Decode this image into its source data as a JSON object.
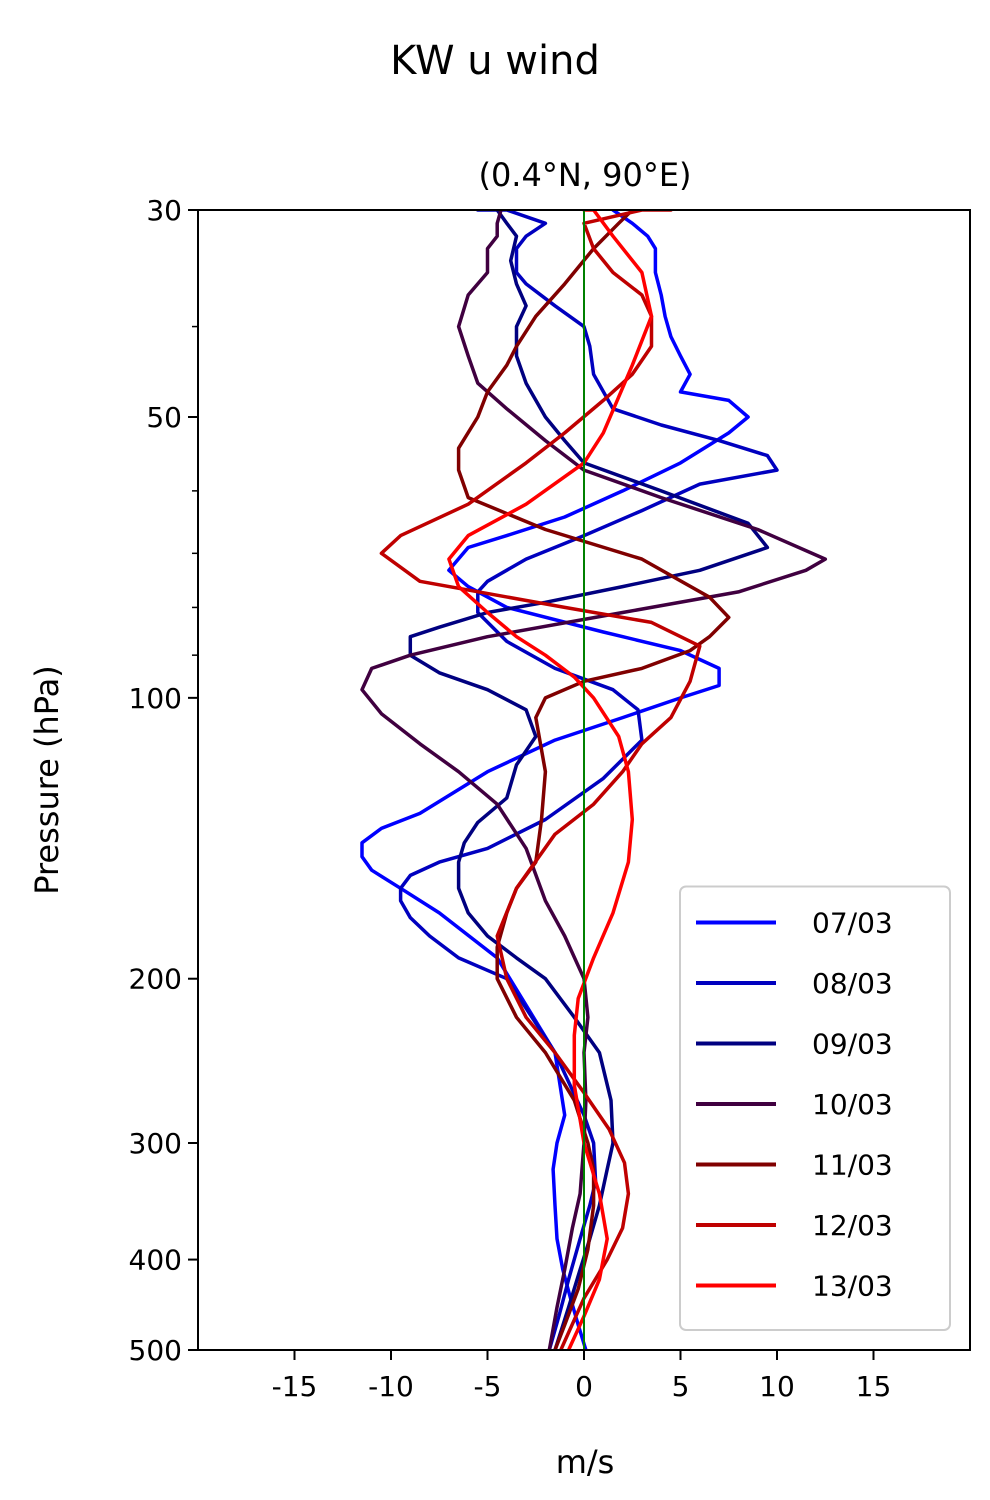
{
  "chart_data": {
    "type": "line",
    "title": "KW u wind",
    "subtitle": "(0.4°N, 90°E)",
    "xlabel": "m/s",
    "ylabel": "Pressure (hPa)",
    "xlim": [
      -20,
      20
    ],
    "ylim": [
      500,
      30
    ],
    "yscale": "log",
    "x_ticks": [
      -15,
      -10,
      -5,
      0,
      5,
      10,
      15
    ],
    "x_tick_labels": [
      "-15",
      "-10",
      "-5",
      "0",
      "5",
      "10",
      "15"
    ],
    "y_ticks": [
      30,
      50,
      100,
      200,
      300,
      400,
      500
    ],
    "y_tick_labels": [
      "30",
      "50",
      "100",
      "200",
      "300",
      "400",
      "500"
    ],
    "y_minor_ticks": [
      40,
      60,
      70,
      80,
      90
    ],
    "reference_line": {
      "x": 0,
      "color": "#008000"
    },
    "legend_position": "lower right",
    "series": [
      {
        "name": "07/03",
        "color": "#0000ff",
        "x": [
          0.1,
          -0.3,
          -0.7,
          -1.1,
          -1.4,
          -1.5,
          -1.6,
          -1.4,
          -1.0,
          -1.5,
          -4.5,
          -7.5,
          -9.5,
          -11.0,
          -11.5,
          -11.5,
          -10.5,
          -8.5,
          -5.0,
          -1.5,
          2.0,
          5.0,
          7.0,
          7.0,
          5.0,
          1.0,
          -4.0,
          -6.0,
          -7.0,
          -6.0,
          -4.0,
          -1.0,
          2.0,
          5.0,
          7.5,
          8.5,
          7.5,
          5.0,
          5.5,
          5.0,
          4.5,
          4.2,
          4.0,
          3.7,
          3.7,
          3.3,
          2.5,
          1.5
        ],
        "y": [
          500,
          470,
          440,
          410,
          380,
          350,
          320,
          300,
          280,
          240,
          190,
          170,
          160,
          153,
          148,
          143,
          138,
          133,
          120,
          111,
          105,
          100,
          97,
          93,
          89,
          85,
          80,
          76,
          73,
          69,
          67,
          64,
          60,
          56,
          52,
          50,
          48,
          47,
          45,
          43,
          41,
          39,
          37,
          35,
          33,
          32,
          31,
          30
        ]
      },
      {
        "name": "08/03",
        "color": "#0000bf",
        "x": [
          -1.8,
          -1.3,
          -0.8,
          -0.2,
          0.3,
          0.6,
          0.5,
          0.0,
          -1.5,
          -4.0,
          -6.5,
          -8.0,
          -9.0,
          -9.5,
          -9.5,
          -9.0,
          -7.5,
          -5.0,
          -2.0,
          1.0,
          3.0,
          2.8,
          1.5,
          -1.5,
          -4.0,
          -5.5,
          -5.5,
          -5.0,
          -3.0,
          0.0,
          3.0,
          6.0,
          10.0,
          9.5,
          7.0,
          4.0,
          1.5,
          0.5,
          0.3,
          0.0,
          -1.5,
          -3.0,
          -3.5,
          -3.5,
          -3.0,
          -2.0,
          -4.0,
          -5.5
        ],
        "y": [
          500,
          460,
          420,
          380,
          350,
          330,
          300,
          280,
          240,
          200,
          190,
          180,
          172,
          165,
          160,
          155,
          150,
          145,
          135,
          122,
          111,
          103,
          98,
          93,
          87,
          81,
          77,
          75,
          71,
          67,
          63,
          59,
          57,
          55,
          53,
          51,
          49,
          45,
          42,
          40,
          38,
          36,
          35,
          33,
          32,
          31,
          30,
          30
        ]
      },
      {
        "name": "09/03",
        "color": "#000080",
        "x": [
          -1.5,
          -0.8,
          -0.2,
          0.3,
          0.8,
          1.2,
          1.5,
          1.4,
          0.8,
          -0.5,
          -2.0,
          -3.5,
          -5.0,
          -6.0,
          -6.5,
          -6.5,
          -6.2,
          -5.5,
          -4.0,
          -3.5,
          -2.5,
          -3.0,
          -5.0,
          -7.5,
          -9.0,
          -9.0,
          -7.5,
          -5.0,
          -2.0,
          2.0,
          6.0,
          9.5,
          8.5,
          4.0,
          0.0,
          -1.0,
          -2.0,
          -3.0,
          -3.5,
          -3.5,
          -3.0,
          -3.5,
          -3.8,
          -3.5,
          -4.0,
          -4.5
        ],
        "y": [
          500,
          450,
          410,
          380,
          350,
          320,
          300,
          270,
          240,
          220,
          200,
          190,
          180,
          170,
          160,
          150,
          143,
          136,
          128,
          118,
          110,
          103,
          98,
          94,
          90,
          86,
          84,
          81,
          79,
          76,
          73,
          69,
          65,
          60,
          56,
          53,
          50,
          46,
          43,
          40,
          38,
          36,
          34,
          32,
          31,
          30
        ]
      },
      {
        "name": "10/03",
        "color": "#400040",
        "x": [
          -1.8,
          -1.4,
          -1.0,
          -0.6,
          -0.2,
          0.0,
          0.1,
          0.0,
          0.2,
          0.0,
          -1.0,
          -2.0,
          -3.0,
          -4.5,
          -6.5,
          -8.5,
          -10.5,
          -11.5,
          -11.0,
          -9.0,
          -5.0,
          2.0,
          8.0,
          11.5,
          12.5,
          9.0,
          4.0,
          0.0,
          -2.0,
          -4.0,
          -5.5,
          -6.0,
          -6.5,
          -6.0,
          -5.0,
          -5.0,
          -4.5,
          -4.5,
          -4.3
        ],
        "y": [
          500,
          450,
          410,
          370,
          340,
          300,
          270,
          240,
          220,
          200,
          180,
          165,
          145,
          130,
          120,
          112,
          104,
          98,
          93,
          90,
          86,
          81,
          77,
          73,
          71,
          66,
          61,
          57,
          53,
          49,
          46,
          43,
          40,
          37,
          35,
          33,
          32,
          31,
          30
        ]
      },
      {
        "name": "11/03",
        "color": "#800000",
        "x": [
          -1.5,
          -1.0,
          -0.3,
          0.2,
          0.5,
          0.5,
          0.2,
          -0.5,
          -2.0,
          -3.5,
          -4.5,
          -4.5,
          -4.0,
          -3.5,
          -2.5,
          -2.2,
          -2.0,
          -2.5,
          -2.0,
          0.0,
          3.0,
          5.5,
          6.5,
          7.5,
          6.5,
          3.0,
          -2.0,
          -6.0,
          -6.5,
          -6.5,
          -5.5,
          -5.0,
          -4.0,
          -3.5,
          -2.5,
          -1.0,
          0.5,
          1.8,
          2.5
        ],
        "y": [
          500,
          470,
          430,
          390,
          350,
          320,
          300,
          270,
          240,
          220,
          200,
          185,
          170,
          160,
          150,
          135,
          120,
          105,
          100,
          96,
          93,
          89,
          86,
          82,
          78,
          71,
          66,
          61,
          57,
          54,
          50,
          47,
          44,
          42,
          39,
          36,
          33,
          31,
          30
        ]
      },
      {
        "name": "12/03",
        "color": "#bf0000",
        "x": [
          -1.2,
          0.0,
          1.2,
          2.0,
          2.3,
          2.1,
          1.3,
          0.0,
          -1.5,
          -3.0,
          -4.0,
          -4.5,
          -3.5,
          -1.5,
          0.5,
          2.0,
          3.0,
          4.5,
          5.5,
          6.0,
          3.5,
          -1.0,
          -8.5,
          -10.5,
          -9.5,
          -6.0,
          -3.0,
          -1.0,
          1.0,
          2.5,
          3.5,
          3.5,
          3.0,
          1.5,
          0.5,
          0.0,
          3.0,
          4.5
        ],
        "y": [
          500,
          440,
          400,
          370,
          340,
          315,
          290,
          265,
          240,
          220,
          200,
          180,
          160,
          140,
          130,
          120,
          112,
          105,
          96,
          88,
          83,
          80,
          75,
          70,
          67,
          62,
          56,
          52,
          48,
          45,
          42,
          39,
          37,
          35,
          33,
          31,
          30,
          30
        ]
      },
      {
        "name": "13/03",
        "color": "#ff0000",
        "x": [
          -0.8,
          0.0,
          0.8,
          1.2,
          0.8,
          0.0,
          -0.5,
          -0.5,
          -0.3,
          0.5,
          1.5,
          2.3,
          2.5,
          2.3,
          1.8,
          0.5,
          -0.5,
          -2.0,
          -3.5,
          -5.0,
          -6.5,
          -7.0,
          -6.0,
          -3.0,
          0.0,
          1.0,
          2.5,
          3.5,
          3.0,
          1.5,
          0.5,
          0.0
        ],
        "y": [
          500,
          460,
          420,
          380,
          340,
          300,
          260,
          230,
          210,
          190,
          170,
          150,
          135,
          120,
          110,
          100,
          95,
          90,
          86,
          81,
          76,
          71,
          67,
          62,
          56,
          52,
          44,
          39,
          35,
          32,
          30,
          30
        ]
      }
    ]
  }
}
